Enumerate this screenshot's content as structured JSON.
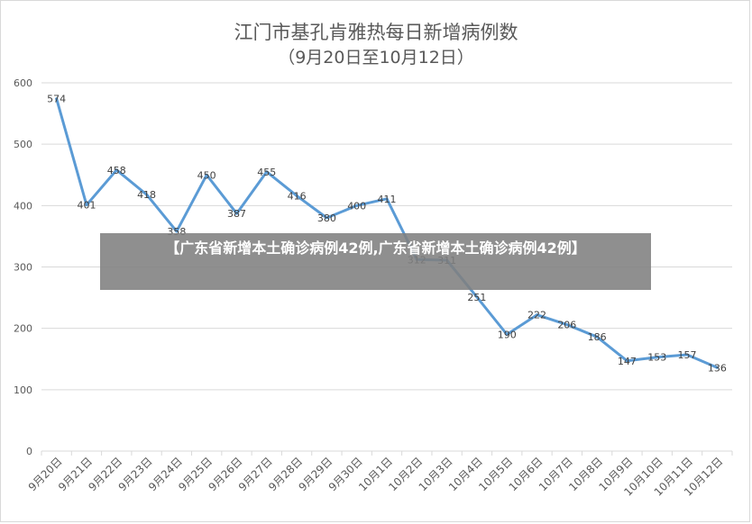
{
  "overlay_text": "【广东省新增本土确诊病例42例,广东省新增本土确诊病例42例】",
  "colors": {
    "line": "#5b9bd5",
    "grid": "#d9d9d9",
    "text": "#595959",
    "overlay": "#808080"
  },
  "chart_data": {
    "type": "line",
    "title": "江门市基孔肯雅热每日新增病例数",
    "subtitle": "（9月20日至10月12日）",
    "categories": [
      "9月20日",
      "9月21日",
      "9月22日",
      "9月23日",
      "9月24日",
      "9月25日",
      "9月26日",
      "9月27日",
      "9月28日",
      "9月29日",
      "9月30日",
      "10月1日",
      "10月2日",
      "10月3日",
      "10月4日",
      "10月5日",
      "10月6日",
      "10月7日",
      "10月8日",
      "10月9日",
      "10月10日",
      "10月11日",
      "10月12日"
    ],
    "values": [
      574,
      401,
      458,
      418,
      358,
      450,
      387,
      455,
      416,
      380,
      400,
      411,
      312,
      311,
      251,
      190,
      222,
      206,
      186,
      147,
      153,
      157,
      136
    ],
    "ylim": [
      0,
      600
    ],
    "yticks": [
      0,
      100,
      200,
      300,
      400,
      500,
      600
    ],
    "grid": true,
    "legend": false
  }
}
